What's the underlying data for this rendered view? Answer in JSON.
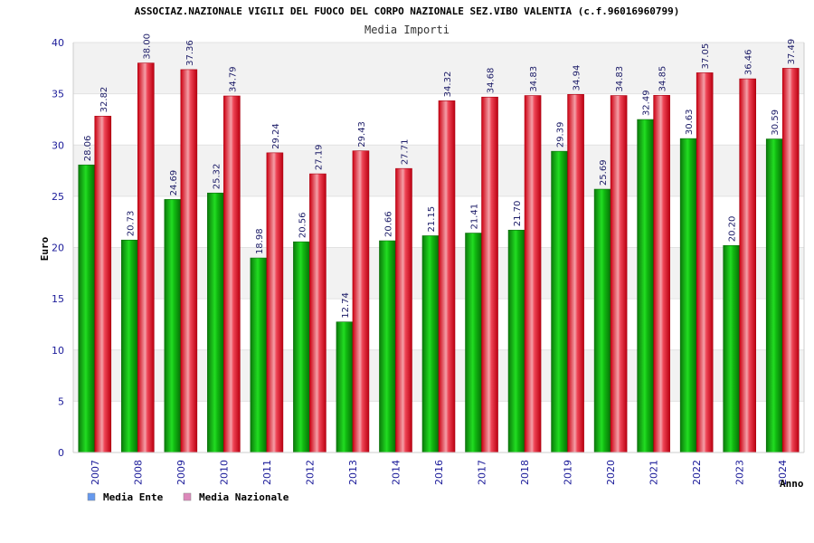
{
  "chart_data": {
    "type": "bar",
    "title": "ASSOCIAZ.NAZIONALE VIGILI DEL FUOCO DEL CORPO NAZIONALE SEZ.VIBO VALENTIA (c.f.96016960799)",
    "subtitle": "Media Importi",
    "xlabel": "Anno",
    "ylabel": "Euro",
    "ylim": [
      0,
      40
    ],
    "yticks": [
      0,
      5,
      10,
      15,
      20,
      25,
      30,
      35,
      40
    ],
    "grid": "horizontal bands",
    "legend_position": "bottom-left",
    "categories": [
      "2007",
      "2008",
      "2009",
      "2010",
      "2011",
      "2012",
      "2013",
      "2014",
      "2016",
      "2017",
      "2018",
      "2019",
      "2020",
      "2021",
      "2022",
      "2023",
      "2024"
    ],
    "series": [
      {
        "name": "Media Ente",
        "legend_color": "#6699ee",
        "bar_color": "#11aa11",
        "values": [
          28.06,
          20.73,
          24.69,
          25.32,
          18.98,
          20.56,
          12.74,
          20.66,
          21.15,
          21.41,
          21.7,
          29.39,
          25.69,
          32.49,
          30.63,
          20.2,
          30.59
        ],
        "labels": [
          "28.06",
          "20.73",
          "24.69",
          "25.32",
          "18.98",
          "20.56",
          "12.74",
          "20.66",
          "21.15",
          "21.41",
          "21.70",
          "29.39",
          "25.69",
          "32.49",
          "30.63",
          "20.20",
          "30.59"
        ]
      },
      {
        "name": "Media Nazionale",
        "legend_color": "#dd88bb",
        "bar_color": "#ee2233",
        "values": [
          32.82,
          38.0,
          37.36,
          34.79,
          29.24,
          27.19,
          29.43,
          27.71,
          34.32,
          34.68,
          34.83,
          34.94,
          34.83,
          34.85,
          37.05,
          36.46,
          37.49
        ],
        "labels": [
          "32.82",
          "38.00",
          "37.36",
          "34.79",
          "29.24",
          "27.19",
          "29.43",
          "27.71",
          "34.32",
          "34.68",
          "34.83",
          "34.94",
          "34.83",
          "34.85",
          "37.05",
          "36.46",
          "37.49"
        ]
      }
    ]
  }
}
